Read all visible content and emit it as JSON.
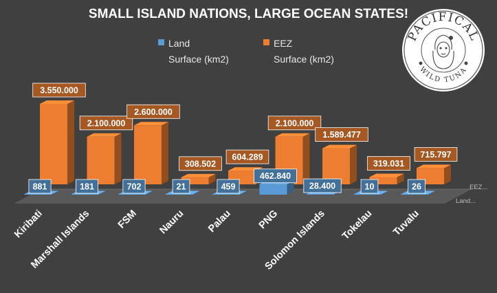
{
  "chart_data": {
    "type": "bar",
    "title": "SMALL ISLAND NATIONS, LARGE OCEAN STATES!",
    "categories": [
      "Kiribati",
      "Marshall Islands",
      "FSM",
      "Nauru",
      "Palau",
      "PNG",
      "Solomon Islands",
      "Tokelau",
      "Tuvalu"
    ],
    "series": [
      {
        "name": "Land Surface (km2)",
        "values": [
          881,
          181,
          702,
          21,
          459,
          462840,
          28400,
          10,
          26
        ],
        "labels": [
          "881",
          "181",
          "702",
          "21",
          "459",
          "462.840",
          "28.400",
          "10",
          "26"
        ],
        "color": "#5b9bd5"
      },
      {
        "name": "EEZ Surface (km2)",
        "values": [
          3550000,
          2100000,
          2600000,
          308502,
          604289,
          2100000,
          1589477,
          319031,
          715797
        ],
        "labels": [
          "3.550.000",
          "2.100.000",
          "2.600.000",
          "308.502",
          "604.289",
          "2.100.000",
          "1.589.477",
          "319.031",
          "715.797"
        ],
        "color": "#ed7d31"
      }
    ],
    "depth_axis_labels": [
      "EEZ...",
      "Land..."
    ],
    "ylim": [
      0,
      3550000
    ],
    "legend_position": "top",
    "chart_style": "3d-column"
  },
  "legend": {
    "land": [
      "Land",
      "Surface (km2)"
    ],
    "eez": [
      "EEZ",
      "Surface (km2)"
    ]
  },
  "logo": {
    "top_text": "PACIFICAL",
    "bottom_text": "WILD TUNA"
  },
  "colors": {
    "background": "#404040",
    "land": "#5b9bd5",
    "eez": "#ed7d31",
    "floor": "#595959"
  }
}
